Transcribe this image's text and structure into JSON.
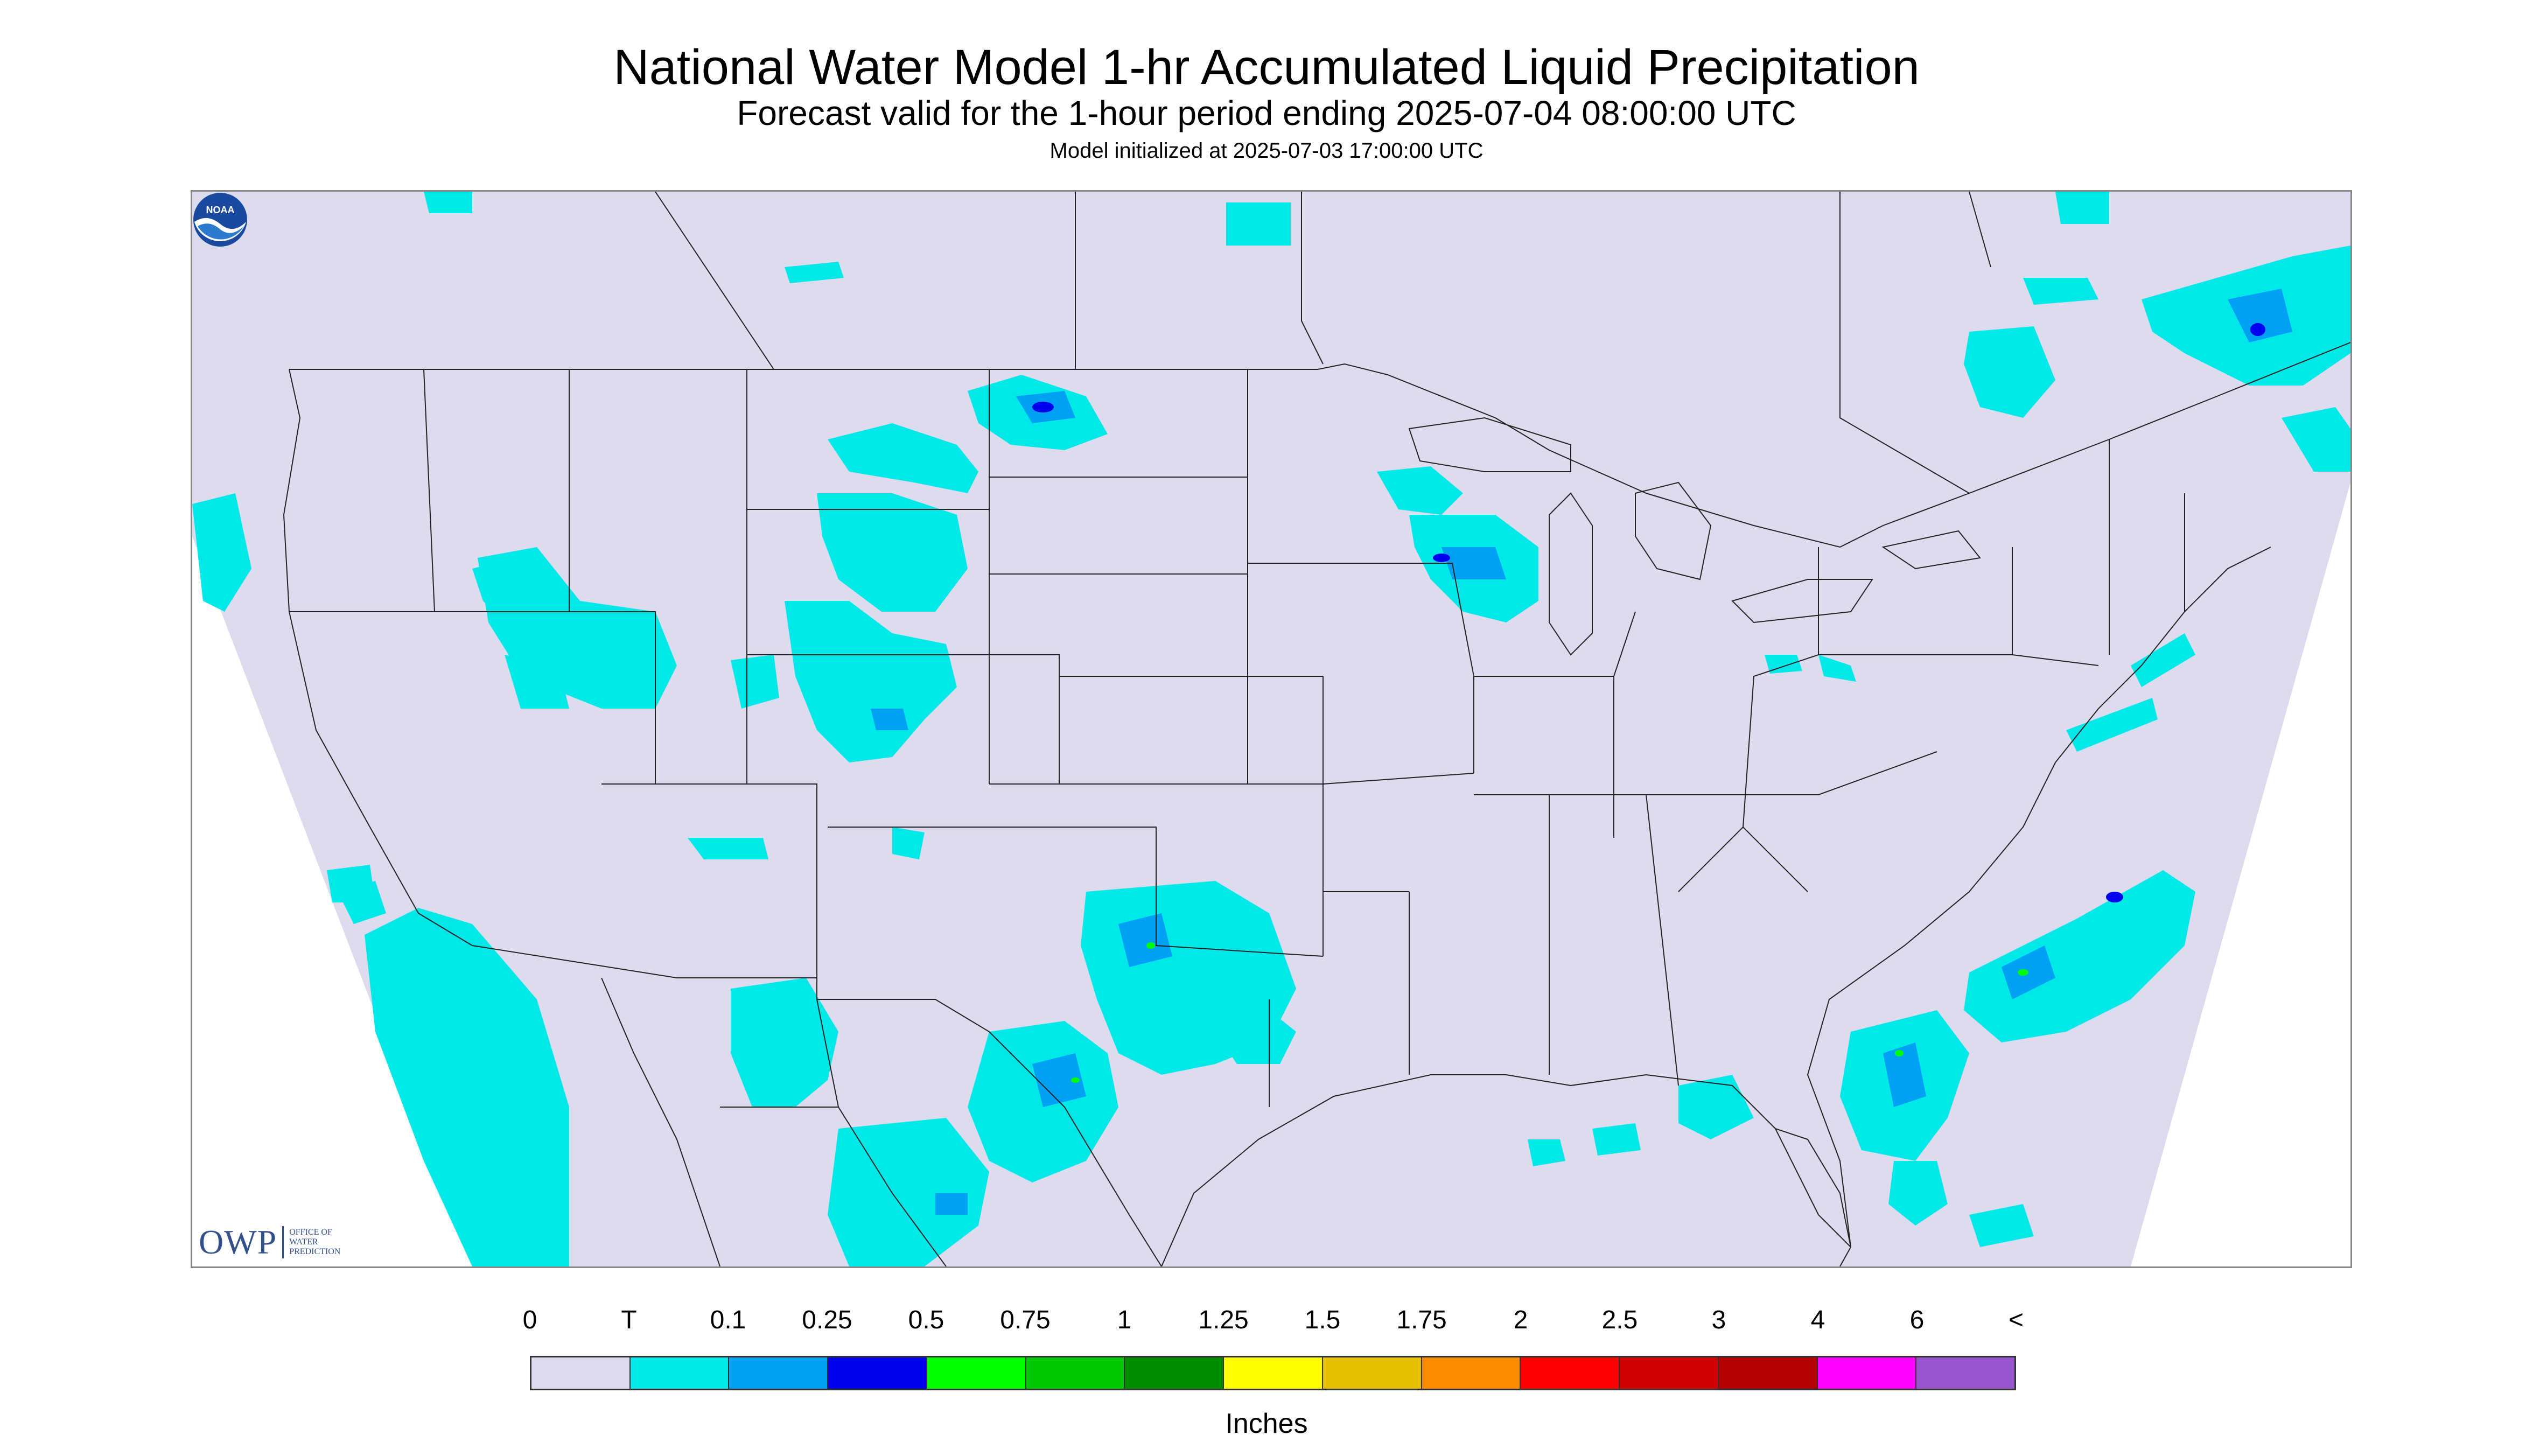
{
  "header": {
    "title": "National Water Model 1-hr Accumulated Liquid Precipitation",
    "subtitle": "Forecast valid for the 1-hour period ending 2025-07-04 08:00:00 UTC",
    "init": "Model initialized at 2025-07-03 17:00:00 UTC"
  },
  "logos": {
    "owp_text": "OWP",
    "owp_sub1": "Office of",
    "owp_sub2": "Water",
    "owp_sub3": "Prediction",
    "noaa_text": "NOAA"
  },
  "legend": {
    "labels": [
      "0",
      "T",
      "0.1",
      "0.25",
      "0.5",
      "0.75",
      "1",
      "1.25",
      "1.5",
      "1.75",
      "2",
      "2.5",
      "3",
      "4",
      "6",
      "<"
    ],
    "colors": [
      "#dcdcee",
      "#00e8e8",
      "#00a0f5",
      "#0000f0",
      "#00ff00",
      "#00c800",
      "#008c00",
      "#ffff00",
      "#e6be00",
      "#ff8c00",
      "#ff0000",
      "#d20000",
      "#b40000",
      "#ff00ff",
      "#9955cc"
    ],
    "units": "Inches"
  },
  "map": {
    "background_color": "#dcdcee",
    "boundary_color": "#222222",
    "precip_light": "#00e8e8",
    "precip_moderate": "#00a0f5",
    "precip_heavy": "#0000f0",
    "precip_green": "#00ff00"
  }
}
